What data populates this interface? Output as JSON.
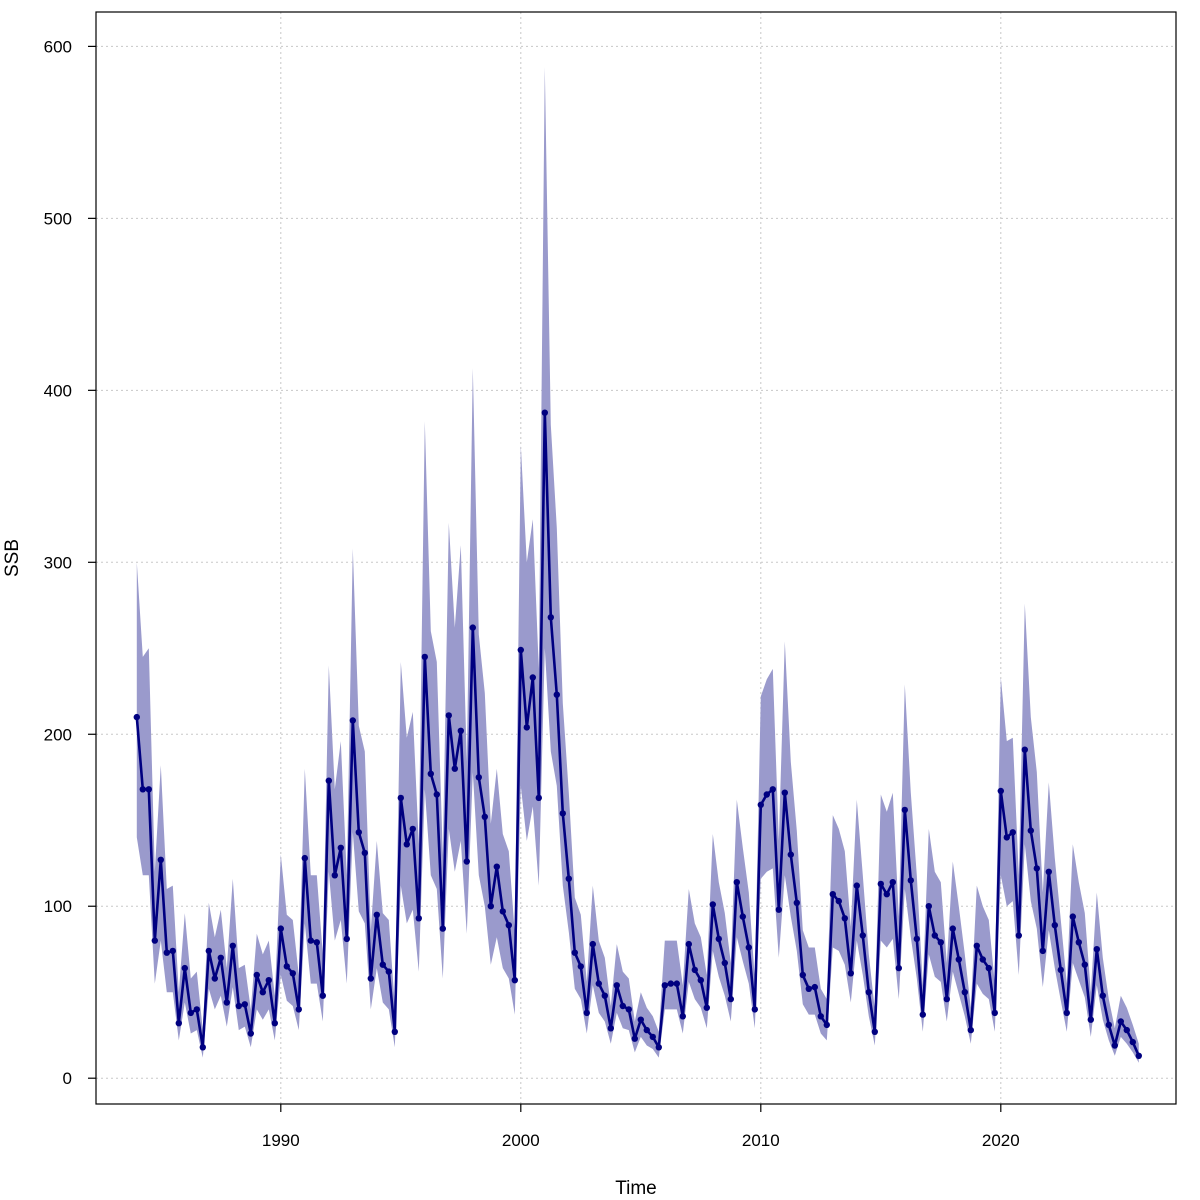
{
  "chart_data": {
    "type": "line",
    "title": "",
    "xlabel": "Time",
    "ylabel": "SSB",
    "xlim": [
      1982.3,
      2027.3
    ],
    "ylim": [
      -15,
      620
    ],
    "x_ticks": [
      1990,
      2000,
      2010,
      2020
    ],
    "y_ticks": [
      0,
      100,
      200,
      300,
      400,
      500,
      600
    ],
    "grid": true,
    "colors": {
      "line": "#000080",
      "band": "#9a9acc"
    },
    "series": [
      {
        "x": [
          1984.0,
          1984.25,
          1984.5,
          1984.75,
          1985.0,
          1985.25,
          1985.5,
          1985.75,
          1986.0,
          1986.25,
          1986.5,
          1986.75,
          1987.0,
          1987.25,
          1987.5,
          1987.75,
          1988.0,
          1988.25,
          1988.5,
          1988.75,
          1989.0,
          1989.25,
          1989.5,
          1989.75,
          1990.0,
          1990.25,
          1990.5,
          1990.75,
          1991.0,
          1991.25,
          1991.5,
          1991.75,
          1992.0,
          1992.25,
          1992.5,
          1992.75,
          1993.0,
          1993.25,
          1993.5,
          1993.75,
          1994.0,
          1994.25,
          1994.5,
          1994.75,
          1995.0,
          1995.25,
          1995.5,
          1995.75,
          1996.0,
          1996.25,
          1996.5,
          1996.75,
          1997.0,
          1997.25,
          1997.5,
          1997.75,
          1998.0,
          1998.25,
          1998.5,
          1998.75,
          1999.0,
          1999.25,
          1999.5,
          1999.75,
          2000.0,
          2000.25,
          2000.5,
          2000.75,
          2001.0,
          2001.25,
          2001.5,
          2001.75,
          2002.0,
          2002.25,
          2002.5,
          2002.75,
          2003.0,
          2003.25,
          2003.5,
          2003.75,
          2004.0,
          2004.25,
          2004.5,
          2004.75,
          2005.0,
          2005.25,
          2005.5,
          2005.75,
          2006.0,
          2006.25,
          2006.5,
          2006.75,
          2007.0,
          2007.25,
          2007.5,
          2007.75,
          2008.0,
          2008.25,
          2008.5,
          2008.75,
          2009.0,
          2009.25,
          2009.5,
          2009.75,
          2010.0,
          2010.25,
          2010.5,
          2010.75,
          2011.0,
          2011.25,
          2011.5,
          2011.75,
          2012.0,
          2012.25,
          2012.5,
          2012.75,
          2013.0,
          2013.25,
          2013.5,
          2013.75,
          2014.0,
          2014.25,
          2014.5,
          2014.75,
          2015.0,
          2015.25,
          2015.5,
          2015.75,
          2016.0,
          2016.25,
          2016.5,
          2016.75,
          2017.0,
          2017.25,
          2017.5,
          2017.75,
          2018.0,
          2018.25,
          2018.5,
          2018.75,
          2019.0,
          2019.25,
          2019.5,
          2019.75,
          2020.0,
          2020.25,
          2020.5,
          2020.75,
          2021.0,
          2021.25,
          2021.5,
          2021.75,
          2022.0,
          2022.25,
          2022.5,
          2022.75,
          2023.0,
          2023.25,
          2023.5,
          2023.75,
          2024.0,
          2024.25,
          2024.5,
          2024.75,
          2025.0,
          2025.25,
          2025.5,
          2025.75
        ],
        "y": [
          210,
          168,
          168,
          80,
          127,
          73,
          74,
          32,
          64,
          38,
          40,
          18,
          74,
          58,
          70,
          44,
          77,
          42,
          43,
          26,
          60,
          50,
          57,
          32,
          87,
          65,
          61,
          40,
          128,
          80,
          79,
          48,
          173,
          118,
          134,
          81,
          208,
          143,
          131,
          58,
          95,
          66,
          62,
          27,
          163,
          136,
          145,
          93,
          245,
          177,
          165,
          87,
          211,
          180,
          202,
          126,
          262,
          175,
          152,
          100,
          123,
          97,
          89,
          57,
          249,
          204,
          233,
          163,
          387,
          268,
          223,
          154,
          116,
          73,
          65,
          38,
          78,
          55,
          48,
          29,
          54,
          42,
          40,
          23,
          34,
          28,
          24,
          18,
          54,
          55,
          55,
          36,
          78,
          63,
          57,
          41,
          101,
          81,
          67,
          46,
          114,
          94,
          76,
          40,
          159,
          165,
          168,
          98,
          166,
          130,
          102,
          60,
          52,
          53,
          36,
          31,
          107,
          103,
          93,
          61,
          112,
          83,
          50,
          27,
          113,
          107,
          114,
          64,
          156,
          115,
          81,
          37,
          100,
          83,
          79,
          46,
          87,
          69,
          50,
          28,
          77,
          69,
          64,
          38,
          167,
          140,
          143,
          83,
          191,
          144,
          122,
          74,
          120,
          89,
          63,
          38,
          94,
          79,
          66,
          34,
          75,
          48,
          31,
          19,
          33,
          28,
          21,
          13
        ]
      }
    ],
    "band": {
      "lower": [
        140,
        118,
        118,
        55,
        80,
        50,
        50,
        22,
        44,
        26,
        28,
        12,
        52,
        40,
        48,
        30,
        53,
        28,
        30,
        18,
        40,
        34,
        40,
        22,
        60,
        45,
        42,
        28,
        90,
        55,
        55,
        33,
        120,
        80,
        92,
        55,
        143,
        97,
        90,
        40,
        64,
        44,
        40,
        18,
        112,
        90,
        98,
        62,
        168,
        118,
        110,
        58,
        145,
        120,
        138,
        84,
        178,
        118,
        100,
        66,
        82,
        64,
        58,
        37,
        170,
        138,
        158,
        112,
        250,
        190,
        170,
        112,
        85,
        52,
        46,
        26,
        54,
        38,
        33,
        20,
        38,
        29,
        28,
        15,
        24,
        19,
        17,
        12,
        40,
        40,
        40,
        26,
        56,
        46,
        41,
        29,
        74,
        59,
        48,
        33,
        82,
        68,
        55,
        29,
        116,
        120,
        122,
        70,
        118,
        94,
        74,
        43,
        37,
        37,
        26,
        22,
        76,
        74,
        66,
        44,
        80,
        60,
        36,
        19,
        80,
        76,
        81,
        46,
        110,
        82,
        58,
        27,
        72,
        59,
        56,
        33,
        62,
        49,
        36,
        20,
        55,
        49,
        46,
        27,
        118,
        100,
        103,
        60,
        136,
        103,
        87,
        53,
        86,
        64,
        45,
        27,
        67,
        57,
        47,
        24,
        54,
        34,
        22,
        13,
        24,
        20,
        15,
        9
      ],
      "upper": [
        300,
        245,
        250,
        120,
        182,
        110,
        112,
        50,
        96,
        58,
        62,
        28,
        102,
        82,
        98,
        64,
        116,
        64,
        66,
        40,
        84,
        72,
        80,
        48,
        130,
        95,
        92,
        60,
        180,
        118,
        118,
        72,
        240,
        168,
        196,
        118,
        308,
        205,
        190,
        86,
        138,
        96,
        92,
        42,
        242,
        198,
        213,
        136,
        382,
        260,
        242,
        130,
        323,
        262,
        310,
        184,
        413,
        258,
        224,
        148,
        180,
        142,
        132,
        84,
        368,
        300,
        325,
        238,
        588,
        380,
        320,
        218,
        166,
        105,
        95,
        56,
        112,
        80,
        70,
        42,
        78,
        62,
        58,
        33,
        50,
        41,
        36,
        27,
        80,
        80,
        80,
        54,
        110,
        90,
        82,
        60,
        142,
        114,
        96,
        67,
        162,
        134,
        108,
        58,
        222,
        232,
        238,
        138,
        254,
        184,
        144,
        86,
        76,
        76,
        52,
        46,
        153,
        145,
        132,
        88,
        162,
        118,
        72,
        40,
        165,
        155,
        166,
        94,
        229,
        166,
        118,
        54,
        145,
        120,
        114,
        67,
        126,
        100,
        72,
        41,
        112,
        100,
        92,
        55,
        233,
        196,
        198,
        118,
        276,
        210,
        178,
        108,
        172,
        128,
        92,
        55,
        136,
        114,
        96,
        50,
        108,
        70,
        46,
        29,
        48,
        41,
        31,
        20
      ]
    }
  }
}
